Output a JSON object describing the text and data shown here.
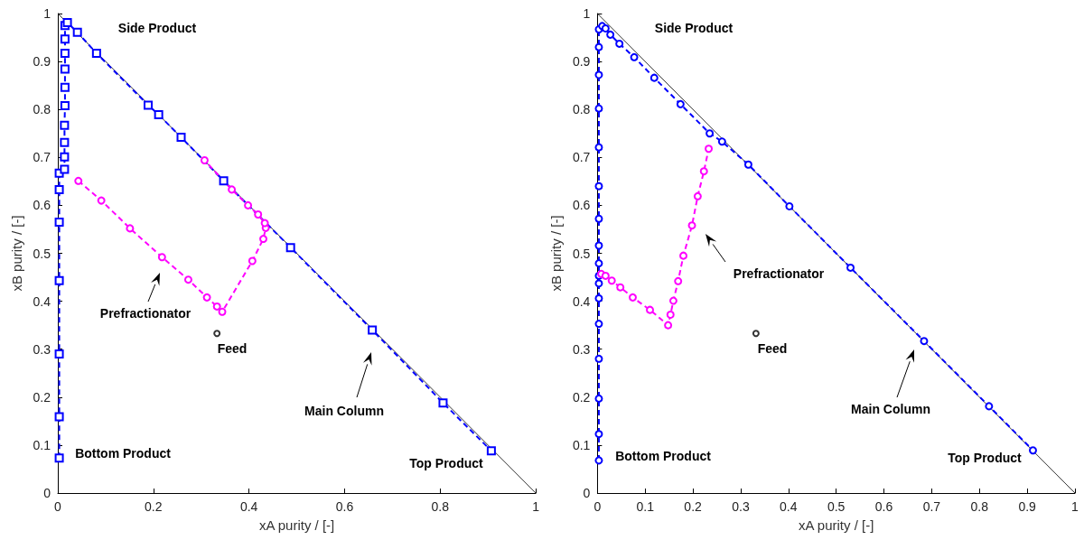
{
  "chart_data": [
    {
      "type": "line",
      "xlabel": "xA purity / [-]",
      "ylabel": "xB purity / [-]",
      "xlim": [
        0,
        1
      ],
      "ylim": [
        0,
        1
      ],
      "xticks": [
        0,
        0.2,
        0.4,
        0.6,
        0.8,
        1
      ],
      "yticks": [
        0,
        0.1,
        0.2,
        0.3,
        0.4,
        0.5,
        0.6,
        0.7,
        0.8,
        0.9,
        1
      ],
      "grid": false,
      "series": [
        {
          "color": "#000000",
          "marker": "none",
          "line_style": "solid",
          "x": [
            0,
            1
          ],
          "values": [
            1,
            0
          ]
        },
        {
          "color": "#0000ff",
          "marker": "square",
          "line_style": "dashed",
          "x": [
            0.003,
            0.003,
            0.003,
            0.003,
            0.003,
            0.003,
            0.003,
            0.014,
            0.014,
            0.014,
            0.014,
            0.015,
            0.015,
            0.015,
            0.015,
            0.015,
            0.015,
            0.02,
            0.041,
            0.081,
            0.189,
            0.211,
            0.258,
            0.347,
            0.487,
            0.658,
            0.806,
            0.907
          ],
          "values": [
            0.073,
            0.159,
            0.29,
            0.443,
            0.565,
            0.633,
            0.667,
            0.675,
            0.701,
            0.731,
            0.767,
            0.808,
            0.846,
            0.884,
            0.917,
            0.947,
            0.975,
            0.981,
            0.961,
            0.917,
            0.809,
            0.789,
            0.742,
            0.651,
            0.512,
            0.34,
            0.188,
            0.088
          ]
        },
        {
          "color": "#ff00ff",
          "marker": "circle",
          "line_style": "dashed",
          "x": [
            0.043,
            0.091,
            0.151,
            0.218,
            0.273,
            0.312,
            0.333,
            0.344,
            0.407,
            0.43,
            0.435,
            0.433,
            0.419,
            0.398,
            0.364,
            0.307
          ],
          "values": [
            0.651,
            0.61,
            0.552,
            0.492,
            0.445,
            0.408,
            0.389,
            0.378,
            0.484,
            0.53,
            0.553,
            0.563,
            0.581,
            0.6,
            0.633,
            0.694
          ]
        },
        {
          "type": "scatter",
          "color": "#000000",
          "marker": "circle",
          "x": [
            0.333
          ],
          "values": [
            0.333
          ]
        }
      ],
      "annotations": [
        "Side Product",
        "Prefractionator",
        "Feed",
        "Main Column",
        "Bottom Product",
        "Top Product"
      ]
    },
    {
      "type": "line",
      "xlabel": "xA purity / [-]",
      "ylabel": "xB purity / [-]",
      "xlim": [
        0,
        1
      ],
      "ylim": [
        0,
        1
      ],
      "xticks": [
        0,
        0.1,
        0.2,
        0.3,
        0.4,
        0.5,
        0.6,
        0.7,
        0.8,
        0.9,
        1
      ],
      "yticks": [
        0,
        0.1,
        0.2,
        0.3,
        0.4,
        0.5,
        0.6,
        0.7,
        0.8,
        0.9,
        1
      ],
      "grid": false,
      "series": [
        {
          "color": "#000000",
          "marker": "none",
          "line_style": "solid",
          "x": [
            0,
            1
          ],
          "values": [
            1,
            0
          ]
        },
        {
          "color": "#0000ff",
          "marker": "circle",
          "line_style": "dashed",
          "x": [
            0.003,
            0.003,
            0.003,
            0.003,
            0.003,
            0.003,
            0.003,
            0.003,
            0.003,
            0.003,
            0.003,
            0.003,
            0.003,
            0.003,
            0.003,
            0.003,
            0.003,
            0.01,
            0.017,
            0.027,
            0.046,
            0.077,
            0.119,
            0.174,
            0.235,
            0.261,
            0.316,
            0.402,
            0.53,
            0.684,
            0.82,
            0.912
          ],
          "values": [
            0.068,
            0.123,
            0.197,
            0.28,
            0.353,
            0.406,
            0.437,
            0.453,
            0.479,
            0.516,
            0.572,
            0.64,
            0.721,
            0.802,
            0.872,
            0.93,
            0.967,
            0.974,
            0.969,
            0.956,
            0.937,
            0.909,
            0.866,
            0.811,
            0.75,
            0.733,
            0.685,
            0.598,
            0.47,
            0.317,
            0.181,
            0.089
          ]
        },
        {
          "color": "#ff00ff",
          "marker": "circle",
          "line_style": "dashed",
          "x": [
            0.008,
            0.017,
            0.03,
            0.048,
            0.074,
            0.11,
            0.148,
            0.153,
            0.159,
            0.169,
            0.18,
            0.198,
            0.21,
            0.223,
            0.233
          ],
          "values": [
            0.457,
            0.453,
            0.443,
            0.429,
            0.408,
            0.382,
            0.35,
            0.372,
            0.401,
            0.442,
            0.495,
            0.558,
            0.619,
            0.671,
            0.718
          ]
        },
        {
          "type": "scatter",
          "color": "#000000",
          "marker": "circle",
          "x": [
            0.332
          ],
          "values": [
            0.333
          ]
        }
      ],
      "annotations": [
        "Side Product",
        "Prefractionator",
        "Feed",
        "Main Column",
        "Bottom Product",
        "Top Product"
      ]
    }
  ]
}
